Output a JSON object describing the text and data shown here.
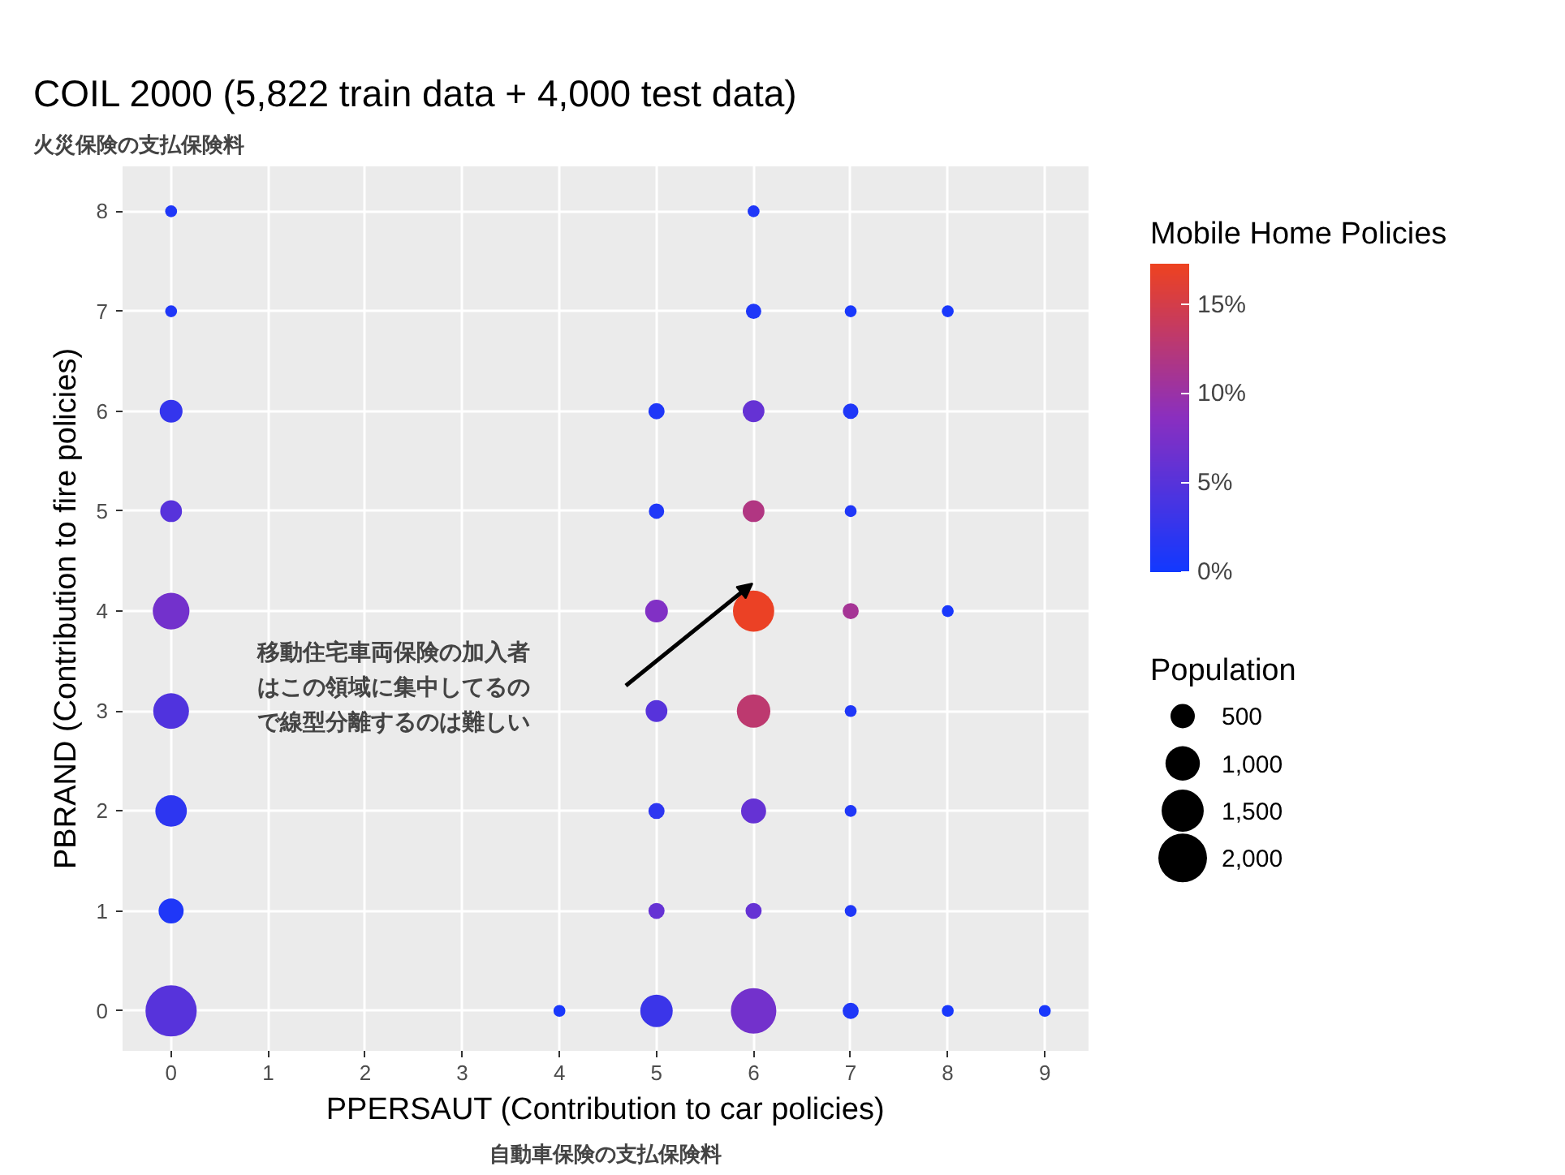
{
  "chart_data": {
    "type": "bubble",
    "title": "COIL 2000 (5,822 train data + 4,000 test data)",
    "xlabel": "PPERSAUT (Contribution to car policies)",
    "ylabel": "PBRAND (Contribution to fire policies)",
    "clabel": "Mobile Home Policies",
    "legend_title": "Population",
    "annotations": [
      "火災保険の支払保険料",
      "自動車保険の支払保険料",
      "移動住宅車両保険の加入者はこの領域に集中してるので線型分離するのは難しい"
    ],
    "x": [
      0,
      0,
      0,
      0,
      0,
      0,
      0,
      0,
      0,
      4,
      5,
      5,
      5,
      5,
      5,
      5,
      5,
      6,
      6,
      6,
      6,
      6,
      6,
      6,
      6,
      6,
      7,
      7,
      7,
      7,
      7,
      7,
      7,
      7,
      8,
      8,
      8,
      9
    ],
    "values": [
      0,
      1,
      2,
      3,
      4,
      5,
      6,
      7,
      8,
      0,
      0,
      1,
      2,
      3,
      4,
      5,
      6,
      0,
      1,
      2,
      3,
      4,
      5,
      6,
      7,
      8,
      0,
      1,
      2,
      3,
      4,
      5,
      6,
      7,
      0,
      4,
      7,
      0
    ],
    "sizes": [
      2220,
      530,
      840,
      1080,
      1140,
      400,
      440,
      120,
      120,
      120,
      890,
      220,
      220,
      400,
      440,
      200,
      220,
      1750,
      220,
      530,
      950,
      1440,
      400,
      400,
      200,
      120,
      220,
      120,
      120,
      120,
      220,
      120,
      200,
      120,
      120,
      120,
      120,
      120
    ],
    "cvalues": [
      5,
      1,
      2,
      4.5,
      7,
      5,
      2.5,
      1,
      1,
      0.5,
      3,
      6,
      2,
      5,
      8,
      1,
      1,
      7,
      6,
      6,
      13,
      17,
      12,
      6,
      1,
      1,
      1,
      1,
      1,
      1,
      11,
      1,
      1,
      0.5,
      0.5,
      0.5,
      0.5,
      0.5
    ],
    "size_legend": [
      {
        "value": 500,
        "label": "500"
      },
      {
        "value": 1000,
        "label": "1,000"
      },
      {
        "value": 1500,
        "label": "1,500"
      },
      {
        "value": 2000,
        "label": "2,000"
      }
    ],
    "clim": [
      0,
      17.3
    ],
    "cticks": [
      {
        "value": 0,
        "label": "0%"
      },
      {
        "value": 5,
        "label": "5%"
      },
      {
        "value": 10,
        "label": "10%"
      },
      {
        "value": 15,
        "label": "15%"
      }
    ],
    "xlim": [
      -0.5,
      9.45
    ],
    "ylim": [
      -0.4,
      8.45
    ],
    "xticks": [
      0,
      1,
      2,
      3,
      4,
      5,
      6,
      7,
      8,
      9
    ],
    "yticks": [
      0,
      1,
      2,
      3,
      4,
      5,
      6,
      7,
      8
    ],
    "grid": true,
    "marker": "circle"
  }
}
